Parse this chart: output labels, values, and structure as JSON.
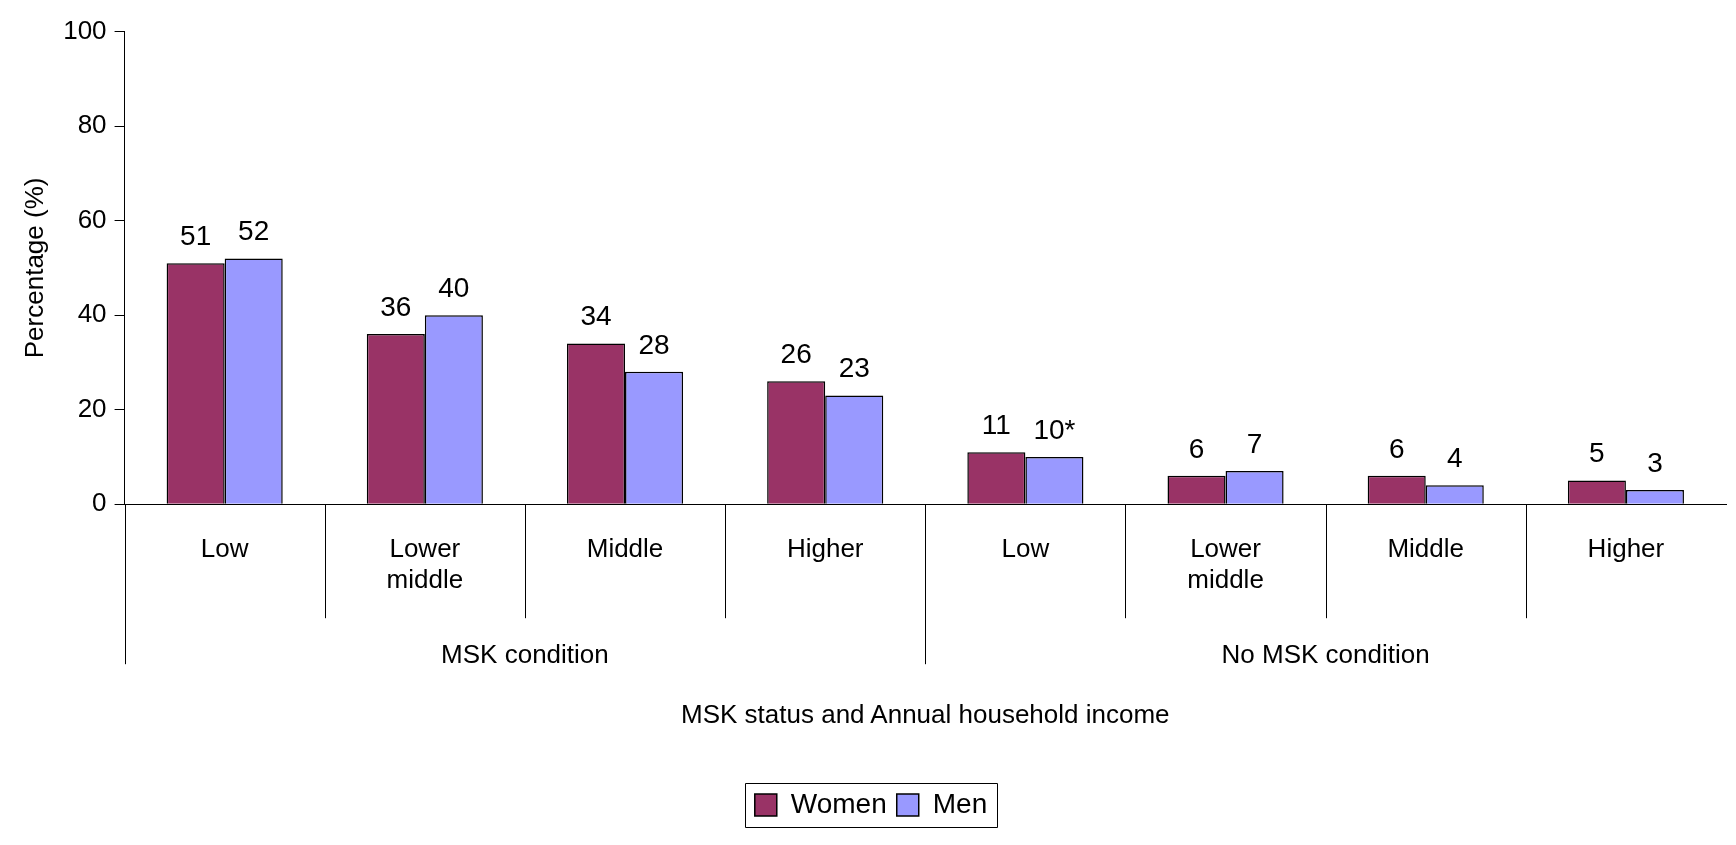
{
  "chart_data": {
    "type": "bar",
    "ylabel": "Percentage (%)",
    "xlabel": "MSK status and Annual household income",
    "categories": [
      "Low",
      "Lower middle",
      "Middle",
      "Higher",
      "Low",
      "Lower middle",
      "Middle",
      "Higher"
    ],
    "series": [
      {
        "name": "Women",
        "color": "#993366",
        "values": [
          51,
          36,
          34,
          26,
          11,
          6,
          6,
          5
        ],
        "value_labels": [
          "51",
          "36",
          "34",
          "26",
          "11",
          "6",
          "6",
          "5"
        ]
      },
      {
        "name": "Men",
        "color": "#9999ff",
        "values": [
          52,
          40,
          28,
          23,
          10,
          7,
          4,
          3
        ],
        "value_labels": [
          "52",
          "40",
          "28",
          "23",
          "10*",
          "7",
          "4",
          "3"
        ]
      }
    ],
    "annotations": [
      "MSK condition",
      "No MSK condition"
    ],
    "ylim": [
      0,
      100
    ],
    "yticks": [
      0,
      20,
      40,
      60,
      80,
      100
    ],
    "grid": false,
    "legend": "bottom"
  }
}
